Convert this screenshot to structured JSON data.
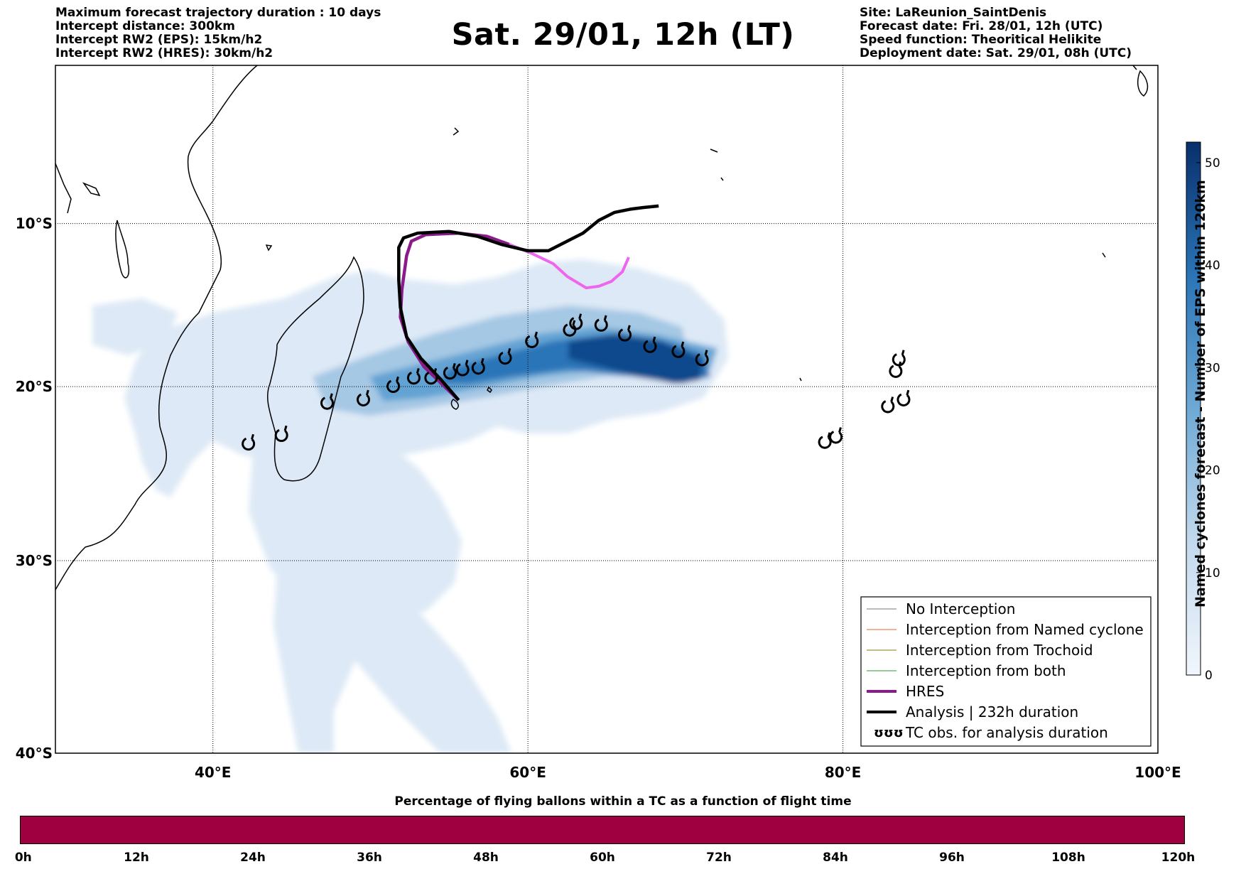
{
  "header_left": [
    "Maximum forecast trajectory duration : 10 days",
    "Intercept distance: 300km",
    "Intercept RW2 (EPS):  15km/h2",
    "Intercept RW2 (HRES): 30km/h2"
  ],
  "title": "Sat. 29/01, 12h (LT)",
  "header_right": [
    "Site: LaReunion_SaintDenis",
    "Forecast date: Fri. 28/01, 12h (UTC)",
    "Speed function: Theoritical Helikite",
    "Deployment date: Sat. 29/01, 08h (UTC)"
  ],
  "map": {
    "lon_range": [
      30,
      100
    ],
    "lat_range": [
      -40,
      0
    ],
    "lat_ticks": [
      "10°S",
      "20°S",
      "30°S",
      "40°S"
    ],
    "lon_ticks": [
      "40°E",
      "60°E",
      "80°E",
      "100°E"
    ],
    "grid": true,
    "colors": {
      "hres": "#8b1a8b",
      "hres_tail": "#ee66ee",
      "analysis": "#000000",
      "density_low": "#dde9f6",
      "density_high": "#08306b"
    },
    "analysis_track": [
      [
        68.3,
        -8.9
      ],
      [
        67.3,
        -9.0
      ],
      [
        66.5,
        -9.1
      ],
      [
        65.5,
        -9.3
      ],
      [
        64.5,
        -9.8
      ],
      [
        63.5,
        -10.6
      ],
      [
        62.3,
        -11.2
      ],
      [
        61.3,
        -11.7
      ],
      [
        60,
        -11.7
      ],
      [
        58.3,
        -11.3
      ],
      [
        56.8,
        -10.8
      ],
      [
        55,
        -10.5
      ],
      [
        53,
        -10.6
      ],
      [
        52.1,
        -10.9
      ],
      [
        51.8,
        -11.5
      ],
      [
        51.8,
        -13.5
      ],
      [
        51.9,
        -15.2
      ],
      [
        52.3,
        -17
      ],
      [
        53.2,
        -18.3
      ],
      [
        54.5,
        -19.6
      ],
      [
        55.6,
        -20.8
      ]
    ],
    "hres_track": [
      [
        55.6,
        -20.8
      ],
      [
        54.6,
        -19.9
      ],
      [
        53.4,
        -18.8
      ],
      [
        52.4,
        -17.3
      ],
      [
        51.9,
        -15.8
      ],
      [
        52.0,
        -14.1
      ],
      [
        52.3,
        -12.0
      ],
      [
        52.6,
        -11.1
      ],
      [
        53.5,
        -10.7
      ],
      [
        55.6,
        -10.6
      ],
      [
        57.4,
        -10.8
      ],
      [
        58.8,
        -11.3
      ],
      [
        60.1,
        -11.8
      ],
      [
        61.6,
        -12.5
      ],
      [
        62.5,
        -13.3
      ],
      [
        63.7,
        -14.0
      ],
      [
        64.5,
        -13.9
      ],
      [
        65.3,
        -13.6
      ],
      [
        66.0,
        -13.0
      ],
      [
        66.4,
        -12.1
      ]
    ],
    "tc_obs": [
      [
        42.2,
        -23.4
      ],
      [
        44.3,
        -22.9
      ],
      [
        47.2,
        -21
      ],
      [
        49.5,
        -20.8
      ],
      [
        51.4,
        -20
      ],
      [
        52.7,
        -19.5
      ],
      [
        53.8,
        -19.5
      ],
      [
        55,
        -19.2
      ],
      [
        55.8,
        -19
      ],
      [
        56.8,
        -18.9
      ],
      [
        58.5,
        -18.3
      ],
      [
        60.2,
        -17.3
      ],
      [
        62.6,
        -16.6
      ],
      [
        63,
        -16.2
      ],
      [
        64.6,
        -16.3
      ],
      [
        66.1,
        -16.9
      ],
      [
        67.7,
        -17.6
      ],
      [
        69.5,
        -17.9
      ],
      [
        71,
        -18.4
      ],
      [
        78.8,
        -23.3
      ],
      [
        79.5,
        -23
      ],
      [
        82.8,
        -21.2
      ],
      [
        83.8,
        -20.8
      ],
      [
        83.3,
        -19.1
      ],
      [
        83.5,
        -18.4
      ]
    ],
    "site": {
      "lon": 55.5,
      "lat": -21.1
    }
  },
  "legend": [
    {
      "label": "No Interception",
      "color": "#777777",
      "width": 1
    },
    {
      "label": "Interception from Named cyclone",
      "color": "#e8632c",
      "width": 1
    },
    {
      "label": "Interception from Trochoid",
      "color": "#8a7a10",
      "width": 1
    },
    {
      "label": "Interception from both",
      "color": "#2a9a2a",
      "width": 1
    },
    {
      "label": "HRES",
      "color": "#8b1a8b",
      "width": 4
    },
    {
      "label": "Analysis | 232h duration",
      "color": "#000000",
      "width": 4
    },
    {
      "label": "TC obs. for analysis duration",
      "symbol": "ʊʊʊ"
    }
  ],
  "colorbar": {
    "label": "Named cyclones forecast - Number of EPS within 120km",
    "range": [
      0,
      52
    ],
    "ticks": [
      "0",
      "10",
      "20",
      "30",
      "40",
      "50"
    ]
  },
  "flight_bar": {
    "title": "Percentage of flying ballons within a TC as a function of flight time",
    "color": "#9f0040",
    "ticks": [
      "0h",
      "12h",
      "24h",
      "36h",
      "48h",
      "60h",
      "72h",
      "84h",
      "96h",
      "108h",
      "120h"
    ]
  }
}
